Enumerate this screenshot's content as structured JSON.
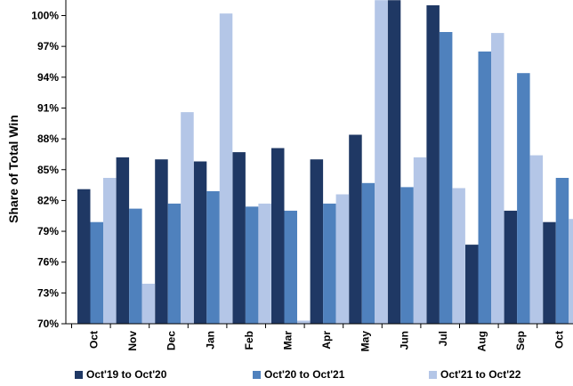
{
  "chart_data": {
    "type": "bar",
    "title": "",
    "xlabel": "",
    "ylabel": "Share of Total Win",
    "categories": [
      "Oct",
      "Nov",
      "Dec",
      "Jan",
      "Feb",
      "Mar",
      "Apr",
      "May",
      "Jun",
      "Jul",
      "Aug",
      "Sep",
      "Oct"
    ],
    "y_ticks": [
      "70%",
      "73%",
      "76%",
      "79%",
      "82%",
      "85%",
      "88%",
      "91%",
      "94%",
      "97%",
      "100%"
    ],
    "ylim": [
      70,
      101.5
    ],
    "grid": false,
    "legend_position": "bottom",
    "series": [
      {
        "name": "Oct'19 to Oct'20",
        "color": "#1f3864",
        "values": [
          83.1,
          86.2,
          86.0,
          85.8,
          86.7,
          87.1,
          86.0,
          88.4,
          101.5,
          101.0,
          77.7,
          81.0,
          79.9
        ]
      },
      {
        "name": "Oct'20 to Oct'21",
        "color": "#4f81bd",
        "values": [
          79.9,
          81.2,
          81.7,
          82.9,
          81.4,
          81.0,
          81.7,
          83.7,
          83.3,
          98.4,
          96.5,
          94.4,
          84.2
        ]
      },
      {
        "name": "Oct'21 to Oct'22",
        "color": "#b4c6e7",
        "values": [
          84.2,
          73.9,
          90.6,
          100.2,
          81.7,
          70.3,
          82.6,
          101.5,
          86.2,
          83.2,
          98.3,
          86.4,
          80.2
        ]
      }
    ]
  }
}
